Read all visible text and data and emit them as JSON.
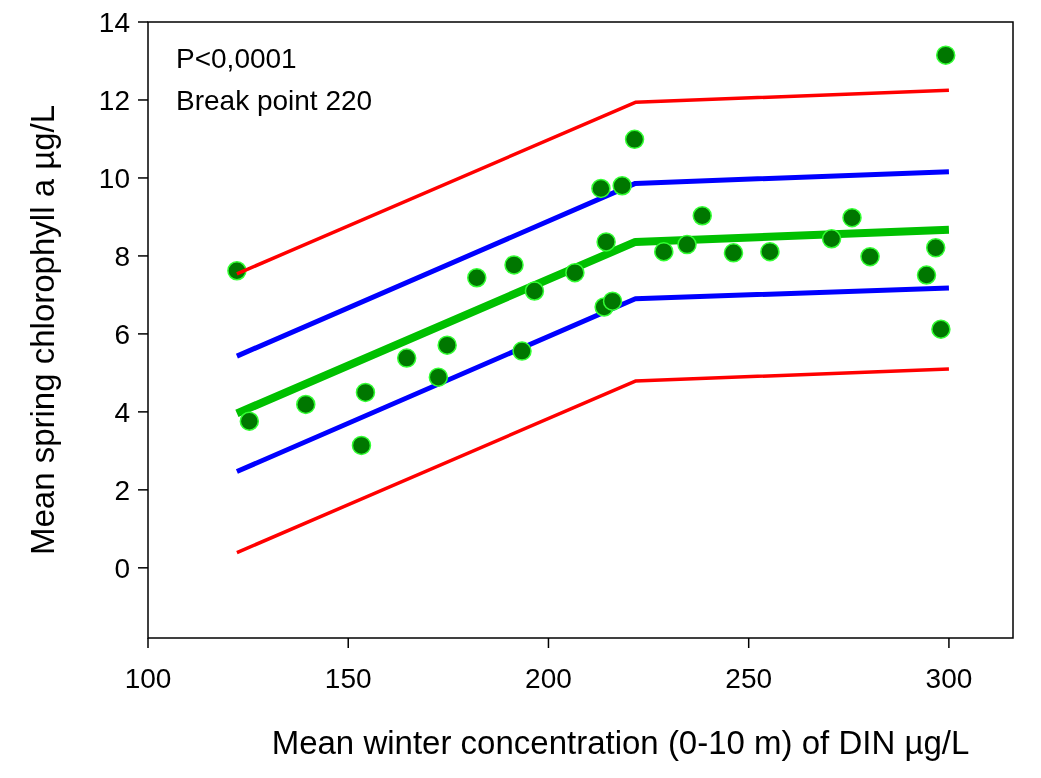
{
  "chart_data": {
    "type": "scatter",
    "xlabel": "Mean winter concentration (0-10 m) of DIN µg/L",
    "ylabel": "Mean spring chlorophyll a µg/L",
    "annotations": [
      "P<0,0001",
      "Break point 220"
    ],
    "xlim": [
      100,
      316
    ],
    "ylim": [
      -1.8,
      14
    ],
    "xticks": [
      100,
      150,
      200,
      250,
      300
    ],
    "yticks": [
      0,
      2,
      4,
      6,
      8,
      10,
      12,
      14
    ],
    "grid": false,
    "series": [
      {
        "type": "line",
        "color": "#0000ff",
        "marker": "none",
        "x": [
          122.2,
          221.7,
          300
        ],
        "values": [
          5.43,
          9.86,
          10.16
        ]
      },
      {
        "type": "line",
        "color": "#0000ff",
        "marker": "none",
        "x": [
          122.2,
          221.7,
          300
        ],
        "values": [
          2.47,
          6.9,
          7.18
        ]
      },
      {
        "type": "line",
        "color": "#00c000",
        "marker": "none",
        "x": [
          122.2,
          221.7,
          300
        ],
        "values": [
          3.96,
          8.36,
          8.67
        ]
      },
      {
        "type": "scatter",
        "color": "#007700",
        "marker": "circle",
        "x": [
          122.2,
          125.3,
          139.4,
          153.3,
          154.3,
          164.6,
          172.5,
          174.7,
          182.1,
          191.4,
          193.4,
          196.5,
          206.6,
          213.1,
          218.4,
          221.5,
          214.4,
          213.9,
          216,
          228.8,
          234.6,
          238.4,
          246.2,
          255.3,
          270.7,
          275.8,
          280.3,
          294.4,
          296.7,
          298,
          299.2
        ],
        "values": [
          7.62,
          3.76,
          4.19,
          3.14,
          4.5,
          5.38,
          4.89,
          5.71,
          7.44,
          7.77,
          5.56,
          7.1,
          7.57,
          9.73,
          9.8,
          10.99,
          8.36,
          6.69,
          6.84,
          8.11,
          8.29,
          9.03,
          8.08,
          8.11,
          8.44,
          8.98,
          7.98,
          7.51,
          8.21,
          6.12,
          13.15
        ]
      },
      {
        "type": "line",
        "color": "#ff0000",
        "marker": "none",
        "x": [
          122.2,
          221.7,
          300
        ],
        "values": [
          7.54,
          11.94,
          12.25
        ]
      },
      {
        "type": "line",
        "color": "#ff0000",
        "marker": "none",
        "x": [
          122.2,
          221.7,
          300
        ],
        "values": [
          0.39,
          4.79,
          5.1
        ]
      }
    ]
  }
}
